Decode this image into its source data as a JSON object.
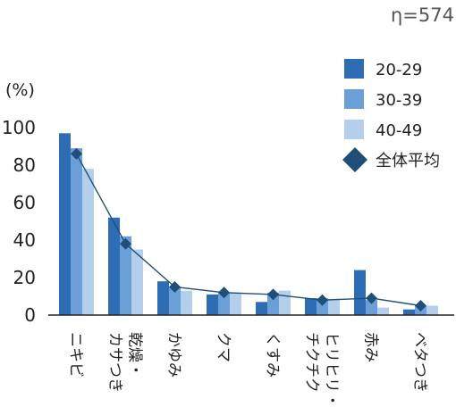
{
  "chart_data": {
    "type": "bar",
    "title": "η=574",
    "ylabel": "(%)",
    "ylim": [
      0,
      100
    ],
    "yticks": [
      0,
      20,
      40,
      60,
      80,
      100
    ],
    "grid": false,
    "legend_position": "top-right",
    "categories": [
      [
        "ニキビ"
      ],
      [
        "乾燥・",
        "カサつき"
      ],
      [
        "かゆみ"
      ],
      [
        "クマ"
      ],
      [
        "くすみ"
      ],
      [
        "ヒリヒリ・",
        "チクチク"
      ],
      [
        "赤み"
      ],
      [
        "ベタつき"
      ]
    ],
    "series": [
      {
        "name": "20-29",
        "color": "#2e6db4",
        "values": [
          97,
          52,
          18,
          11,
          7,
          9,
          24,
          3
        ]
      },
      {
        "name": "30-39",
        "color": "#6a9fd8",
        "values": [
          89,
          42,
          15,
          12,
          12,
          9,
          8,
          5
        ]
      },
      {
        "name": "40-49",
        "color": "#b4cfec",
        "values": [
          78,
          35,
          13,
          12,
          13,
          8,
          4,
          5
        ]
      }
    ],
    "line_series": {
      "name": "全体平均",
      "color": "#1f4e79",
      "marker": "diamond",
      "values": [
        86,
        38,
        15,
        12,
        11,
        8,
        9,
        5
      ]
    }
  }
}
